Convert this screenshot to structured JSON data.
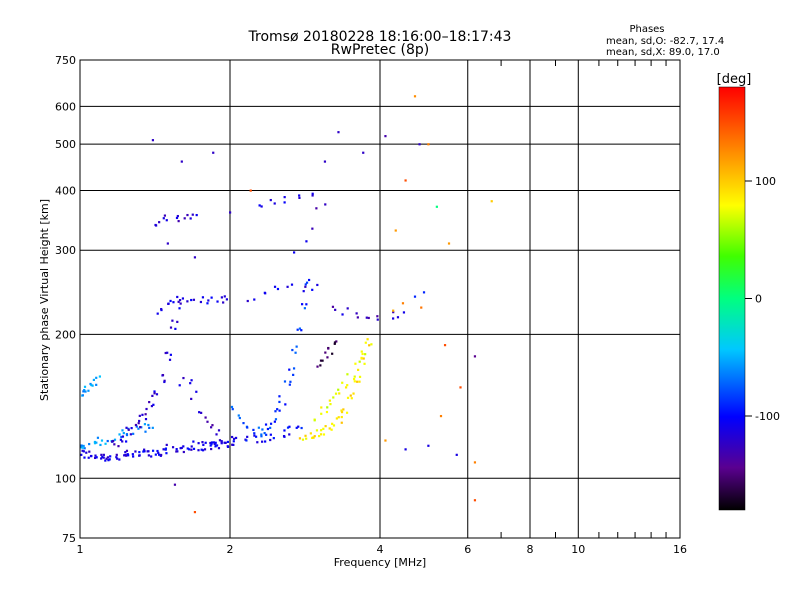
{
  "chart_data": {
    "type": "scatter",
    "title": "Tromsø 20180228 18:16:00–18:17:43",
    "subtitle": "RwPretec (8p)",
    "xlabel": "Frequency [MHz]",
    "ylabel": "Stationary phase Virtual Height [km]",
    "x_scale": "log",
    "y_scale": "log",
    "xlim": [
      1,
      16
    ],
    "ylim": [
      75,
      750
    ],
    "x_ticks": [
      1,
      2,
      4,
      6,
      8,
      10,
      16
    ],
    "y_ticks": [
      75,
      100,
      200,
      300,
      400,
      500,
      600,
      750
    ],
    "grid": true,
    "phase_box": {
      "title": "Phases",
      "line1": "mean, sd,O: -82.7, 17.4",
      "line2": "mean, sd,X:  89.0, 17.0"
    },
    "colorbar": {
      "label": "[deg]",
      "ticks": [
        100,
        0,
        -100
      ],
      "range": [
        -180,
        180
      ]
    },
    "traces": [
      {
        "x": [
          1.0,
          1.03,
          1.06,
          1.09,
          1.12,
          1.15,
          1.18,
          1.22,
          1.26,
          1.3,
          1.34,
          1.38,
          1.42,
          1.46,
          1.5,
          1.55,
          1.6,
          1.65,
          1.7,
          1.75,
          1.8,
          1.85,
          1.9,
          1.95,
          2.0
        ],
        "y": [
          113,
          112,
          112,
          111,
          111,
          111,
          111,
          111,
          112,
          112,
          113,
          113,
          114,
          114,
          115,
          115,
          116,
          116,
          117,
          117,
          117,
          117,
          118,
          118,
          118
        ],
        "phase": -110,
        "count": 4
      },
      {
        "x": [
          1.0,
          1.03,
          1.06,
          1.1,
          1.14,
          1.18,
          1.22,
          1.26,
          1.3,
          1.34,
          1.38
        ],
        "y": [
          116,
          118,
          118,
          120,
          120,
          122,
          124,
          125,
          126,
          128,
          130
        ],
        "phase": -60,
        "count": 3
      },
      {
        "x": [
          1.0,
          1.02,
          1.04,
          1.06,
          1.08
        ],
        "y": [
          150,
          152,
          155,
          157,
          160
        ],
        "phase": -60,
        "count": 3
      },
      {
        "x": [
          1.18,
          1.22,
          1.26,
          1.3,
          1.34,
          1.38,
          1.42,
          1.46,
          1.5,
          1.54,
          1.58
        ],
        "y": [
          118,
          121,
          125,
          130,
          136,
          142,
          150,
          162,
          180,
          210,
          235
        ],
        "phase": -115,
        "count": 4
      },
      {
        "x": [
          1.44,
          1.48,
          1.52,
          1.56,
          1.62,
          1.68,
          1.74,
          1.8,
          1.86,
          1.92,
          1.98
        ],
        "y": [
          225,
          228,
          230,
          232,
          233,
          234,
          235,
          236,
          237,
          238,
          240
        ],
        "phase": -112,
        "count": 2
      },
      {
        "x": [
          1.4,
          1.45,
          1.5,
          1.55,
          1.6,
          1.65,
          1.7
        ],
        "y": [
          345,
          346,
          348,
          350,
          352,
          353,
          354
        ],
        "phase": -118,
        "count": 2
      },
      {
        "x": [
          1.6,
          1.65,
          1.7,
          1.75,
          1.8,
          1.85,
          1.9
        ],
        "y": [
          160,
          158,
          150,
          140,
          132,
          128,
          125
        ],
        "phase": -120,
        "count": 2
      },
      {
        "x": [
          1.85,
          1.95,
          2.05,
          2.15,
          2.25,
          2.35,
          2.45,
          2.55,
          2.65,
          2.75
        ],
        "y": [
          119,
          119,
          120,
          120,
          121,
          122,
          123,
          124,
          126,
          128
        ],
        "phase": -100,
        "count": 3
      },
      {
        "x": [
          2.05,
          2.1,
          2.15,
          2.2,
          2.25,
          2.3,
          2.35
        ],
        "y": [
          140,
          135,
          130,
          128,
          126,
          124,
          123
        ],
        "phase": -80,
        "count": 2
      },
      {
        "x": [
          2.4,
          2.45,
          2.5,
          2.55,
          2.6,
          2.65,
          2.7,
          2.75,
          2.8,
          2.85
        ],
        "y": [
          128,
          132,
          138,
          146,
          156,
          168,
          185,
          205,
          230,
          255
        ],
        "phase": -85,
        "count": 3
      },
      {
        "x": [
          2.2,
          2.35,
          2.5,
          2.65,
          2.8,
          2.95
        ],
        "y": [
          240,
          242,
          250,
          255,
          252,
          250
        ],
        "phase": -110,
        "count": 2
      },
      {
        "x": [
          2.3,
          2.45,
          2.6,
          2.75,
          2.9
        ],
        "y": [
          370,
          375,
          380,
          385,
          395
        ],
        "phase": -110,
        "count": 2
      },
      {
        "x": [
          2.8,
          2.9,
          3.0,
          3.1,
          3.2,
          3.3,
          3.4,
          3.5,
          3.6,
          3.7,
          3.8
        ],
        "y": [
          122,
          122,
          124,
          126,
          128,
          132,
          138,
          148,
          160,
          175,
          192
        ],
        "phase": 90,
        "count": 4
      },
      {
        "x": [
          3.0,
          3.1,
          3.2,
          3.3,
          3.4,
          3.5,
          3.6,
          3.7
        ],
        "y": [
          135,
          140,
          146,
          152,
          158,
          165,
          172,
          182
        ],
        "phase": 75,
        "count": 3
      },
      {
        "x": [
          3.0,
          3.1,
          3.2,
          3.3
        ],
        "y": [
          175,
          180,
          185,
          190
        ],
        "phase": -155,
        "count": 3
      },
      {
        "x": [
          3.2,
          3.4,
          3.6,
          3.8,
          4.0,
          4.2,
          4.4
        ],
        "y": [
          230,
          225,
          222,
          218,
          215,
          218,
          222
        ],
        "phase": -120,
        "count": 2
      },
      {
        "x": [
          4.2,
          4.5,
          4.8
        ],
        "y": [
          225,
          228,
          232
        ],
        "phase": 120,
        "count": 1
      },
      {
        "x": [
          2.7,
          2.8,
          2.9,
          3.0,
          3.1
        ],
        "y": [
          300,
          310,
          330,
          360,
          380
        ],
        "phase": -120,
        "count": 1
      }
    ],
    "points": [
      {
        "x": 1.4,
        "y": 510,
        "phase": -120
      },
      {
        "x": 1.6,
        "y": 460,
        "phase": -120
      },
      {
        "x": 1.85,
        "y": 480,
        "phase": -120
      },
      {
        "x": 1.7,
        "y": 85,
        "phase": 150
      },
      {
        "x": 1.55,
        "y": 97,
        "phase": -130
      },
      {
        "x": 1.5,
        "y": 310,
        "phase": -120
      },
      {
        "x": 1.7,
        "y": 290,
        "phase": -120
      },
      {
        "x": 2.0,
        "y": 360,
        "phase": -120
      },
      {
        "x": 2.2,
        "y": 400,
        "phase": 150
      },
      {
        "x": 3.1,
        "y": 460,
        "phase": -120
      },
      {
        "x": 3.3,
        "y": 530,
        "phase": -120
      },
      {
        "x": 3.7,
        "y": 480,
        "phase": -120
      },
      {
        "x": 4.1,
        "y": 520,
        "phase": -130
      },
      {
        "x": 4.8,
        "y": 500,
        "phase": -120
      },
      {
        "x": 5.0,
        "y": 500,
        "phase": 130
      },
      {
        "x": 4.7,
        "y": 630,
        "phase": 125
      },
      {
        "x": 4.5,
        "y": 420,
        "phase": 150
      },
      {
        "x": 5.2,
        "y": 370,
        "phase": 0
      },
      {
        "x": 6.7,
        "y": 380,
        "phase": 100
      },
      {
        "x": 4.3,
        "y": 330,
        "phase": 120
      },
      {
        "x": 5.5,
        "y": 310,
        "phase": 120
      },
      {
        "x": 5.4,
        "y": 190,
        "phase": 150
      },
      {
        "x": 6.2,
        "y": 180,
        "phase": -140
      },
      {
        "x": 5.8,
        "y": 155,
        "phase": 150
      },
      {
        "x": 5.3,
        "y": 135,
        "phase": 130
      },
      {
        "x": 4.1,
        "y": 120,
        "phase": 120
      },
      {
        "x": 4.5,
        "y": 115,
        "phase": -110
      },
      {
        "x": 5.0,
        "y": 117,
        "phase": -110
      },
      {
        "x": 5.7,
        "y": 112,
        "phase": -110
      },
      {
        "x": 6.2,
        "y": 108,
        "phase": 130
      },
      {
        "x": 6.2,
        "y": 90,
        "phase": 150
      },
      {
        "x": 4.9,
        "y": 245,
        "phase": -90
      },
      {
        "x": 4.7,
        "y": 240,
        "phase": -90
      }
    ]
  }
}
